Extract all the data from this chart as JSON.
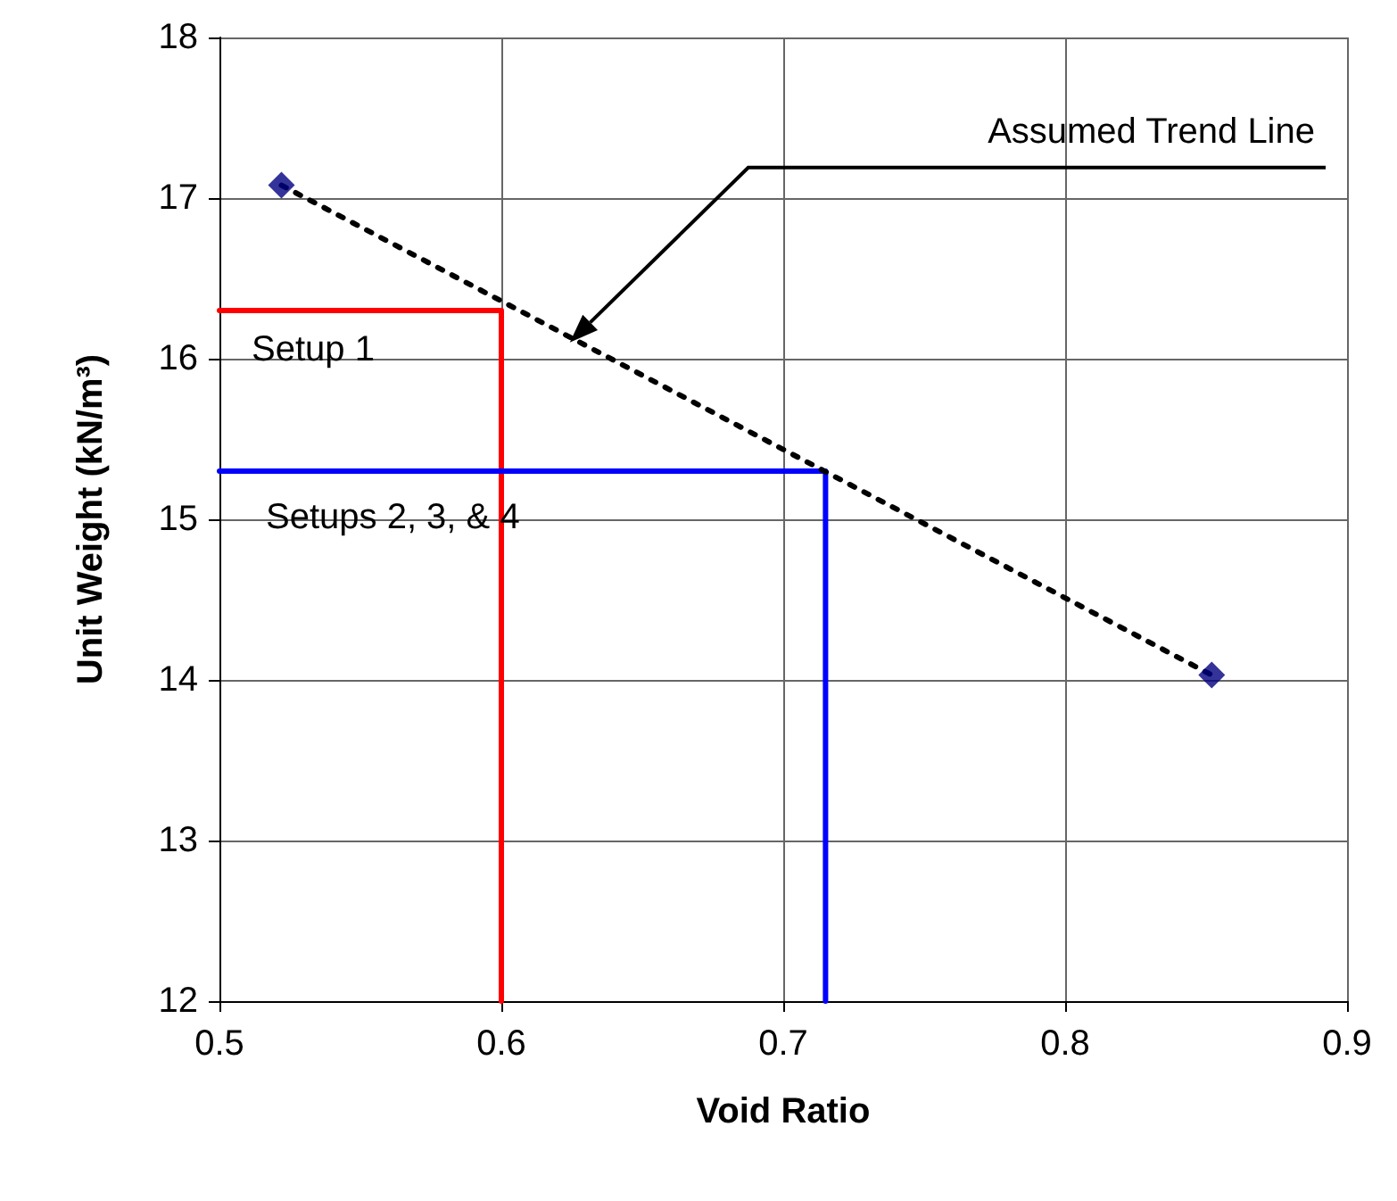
{
  "chart_data": {
    "type": "line",
    "xlabel": "Void Ratio",
    "ylabel": "Unit Weight (kN/m³)",
    "xlim": [
      0.5,
      0.9
    ],
    "xticks": [
      0.5,
      0.6,
      0.7,
      0.8,
      0.9
    ],
    "ylim": [
      12,
      18
    ],
    "yticks": [
      12,
      13,
      14,
      15,
      16,
      17,
      18
    ],
    "grid": true,
    "series": [
      {
        "color": "#ff0000",
        "x": [
          0.5,
          0.6,
          0.6
        ],
        "values": [
          16.3,
          16.3,
          12
        ],
        "marker": "none",
        "line_style": "solid"
      },
      {
        "color": "#0000ff",
        "x": [
          0.5,
          0.715,
          0.715
        ],
        "values": [
          15.3,
          15.3,
          12
        ],
        "marker": "none",
        "line_style": "solid"
      },
      {
        "color": "#000000",
        "x": [
          0.522,
          0.852
        ],
        "values": [
          17.08,
          14.03
        ],
        "marker": "none",
        "line_style": "dotted"
      },
      {
        "type": "scatter",
        "color": "#000080",
        "x": [
          0.522,
          0.852
        ],
        "values": [
          17.08,
          14.03
        ],
        "marker": "diamond"
      }
    ],
    "annotations": [
      "Setup 1",
      "Setups 2, 3, & 4",
      "Assumed Trend Line"
    ]
  }
}
